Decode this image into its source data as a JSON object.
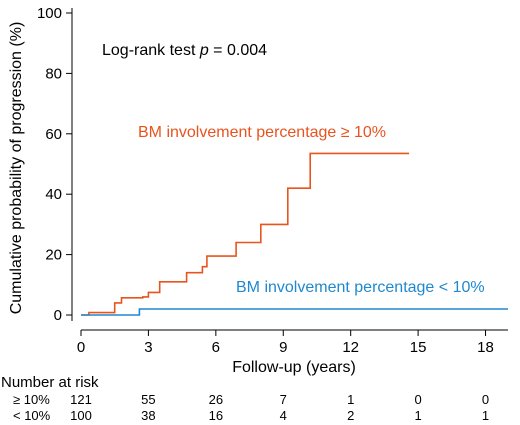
{
  "chart_data": {
    "type": "line",
    "step": true,
    "xlabel": "Follow-up (years)",
    "ylabel": "Cumulative probability of progression (%)",
    "xlim": [
      0,
      19
    ],
    "ylim": [
      0,
      100
    ],
    "xticks": [
      "0",
      "3",
      "6",
      "9",
      "12",
      "15",
      "18"
    ],
    "yticks": [
      "0",
      "20",
      "40",
      "60",
      "80",
      "100"
    ],
    "annotation": {
      "prefix": "Log-rank test ",
      "italic": "p",
      "suffix": " = 0.004"
    },
    "series": [
      {
        "name": "BM involvement percentage ≥ 10%",
        "color": "#e8541e",
        "points": [
          [
            0,
            0
          ],
          [
            0.35,
            0
          ],
          [
            0.35,
            0.8
          ],
          [
            1.5,
            0.8
          ],
          [
            1.5,
            4.0
          ],
          [
            1.8,
            4.0
          ],
          [
            1.8,
            5.7
          ],
          [
            2.75,
            5.7
          ],
          [
            2.75,
            6.0
          ],
          [
            3.0,
            6.0
          ],
          [
            3.0,
            7.5
          ],
          [
            3.5,
            7.5
          ],
          [
            3.5,
            11.0
          ],
          [
            4.7,
            11.0
          ],
          [
            4.7,
            14.0
          ],
          [
            5.4,
            14.0
          ],
          [
            5.4,
            16.0
          ],
          [
            5.6,
            16.0
          ],
          [
            5.6,
            19.5
          ],
          [
            6.9,
            19.5
          ],
          [
            6.9,
            24.0
          ],
          [
            8.0,
            24.0
          ],
          [
            8.0,
            30.0
          ],
          [
            9.2,
            30.0
          ],
          [
            9.2,
            42.0
          ],
          [
            10.2,
            42.0
          ],
          [
            10.2,
            53.5
          ],
          [
            14.6,
            53.5
          ]
        ]
      },
      {
        "name": "BM involvement percentage < 10%",
        "color": "#1f88d0",
        "points": [
          [
            0,
            0
          ],
          [
            2.6,
            0
          ],
          [
            2.6,
            2.0
          ],
          [
            19.0,
            2.0
          ]
        ]
      }
    ]
  },
  "risk_table": {
    "title": "Number at risk",
    "rows": [
      {
        "label": "≥ 10%",
        "values": [
          "121",
          "55",
          "26",
          "7",
          "1",
          "0",
          "0"
        ]
      },
      {
        "label": "< 10%",
        "values": [
          "100",
          "38",
          "16",
          "4",
          "2",
          "1",
          "1"
        ]
      }
    ]
  }
}
